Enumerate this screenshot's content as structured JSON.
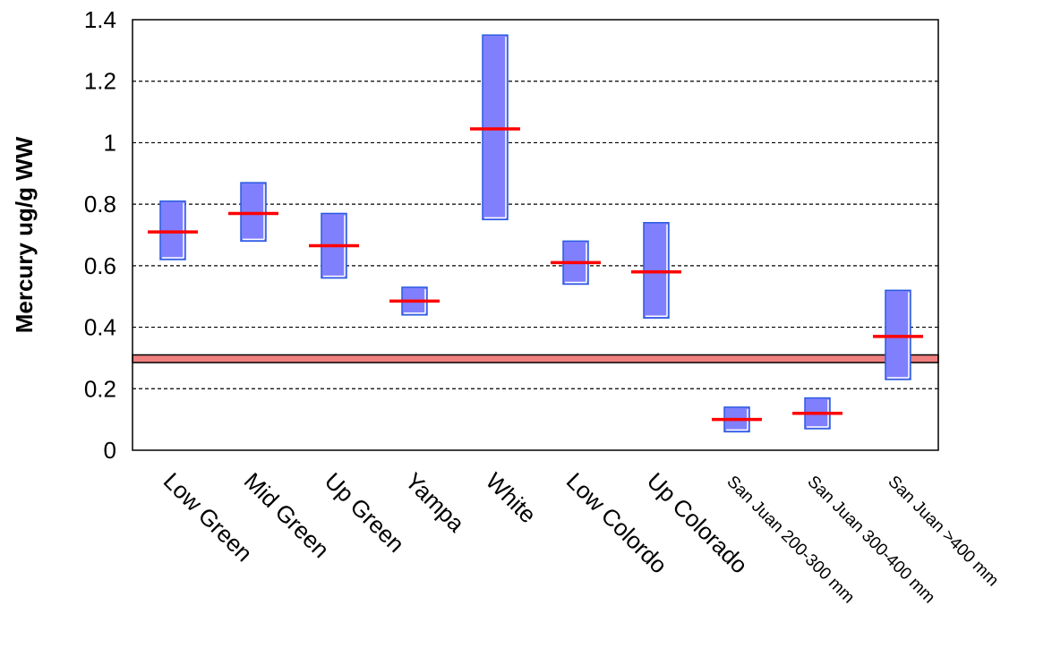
{
  "chart_data": {
    "type": "range-bar",
    "title": "",
    "xlabel": "",
    "ylabel": "Mercury ug/g WW",
    "ylim": [
      0,
      1.4
    ],
    "yticks": [
      0,
      0.2,
      0.4,
      0.6,
      0.8,
      1,
      1.2,
      1.4
    ],
    "ytick_labels": [
      "0",
      "0.2",
      "0.4",
      "0.6",
      "0.8",
      "1",
      "1.2",
      "1.4"
    ],
    "grid": "horizontal-dashed",
    "categories": [
      "Low Green",
      "Mid Green",
      "Up Green",
      "Yampa",
      "White",
      "Low Colordo",
      "Up Colorado",
      "San Juan 200-300 mm",
      "San Juan 300-400 mm",
      "San Juan >400 mm"
    ],
    "small_label_categories": [
      7,
      8,
      9
    ],
    "low": [
      0.62,
      0.68,
      0.56,
      0.44,
      0.75,
      0.54,
      0.43,
      0.06,
      0.07,
      0.23
    ],
    "high": [
      0.81,
      0.87,
      0.77,
      0.53,
      1.35,
      0.68,
      0.74,
      0.14,
      0.17,
      0.52
    ],
    "mean": [
      0.71,
      0.77,
      0.665,
      0.485,
      1.045,
      0.61,
      0.58,
      0.1,
      0.12,
      0.37
    ],
    "reference_band": [
      0.285,
      0.31
    ],
    "colors": {
      "range_fill": "#8080ff",
      "range_stroke": "#2a5be0",
      "mean_line": "#ff0000",
      "reference_fill": "#ef7f7f",
      "reference_stroke": "#000000",
      "gridline": "#000000",
      "axis": "#000000"
    }
  }
}
